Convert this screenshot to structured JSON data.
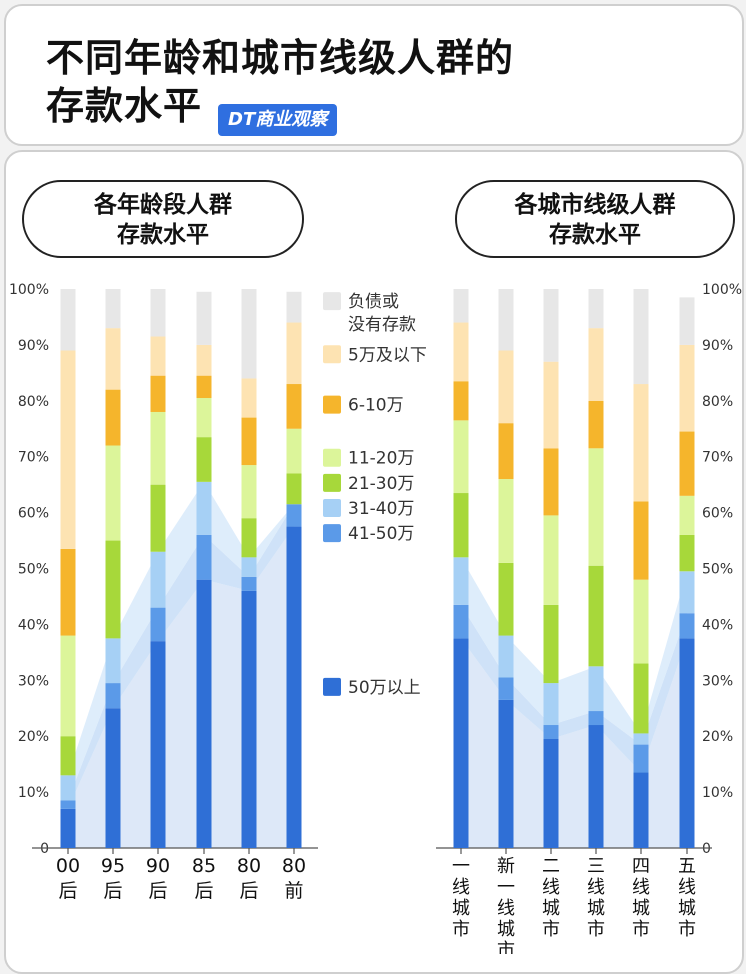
{
  "title": {
    "line1": "不同年龄和城市线级人群的",
    "line2": "存款水平"
  },
  "brand": "DT商业观察",
  "panels": {
    "age": {
      "line1": "各年龄段人群",
      "line2": "存款水平"
    },
    "city": {
      "line1": "各城市线级人群",
      "line2": "存款水平"
    }
  },
  "colors": {
    "负债或没有存款": "#e7e7e7",
    "5万及以下": "#fde3b2",
    "6-10万": "#f5b52c",
    "11-20万": "#dcf59a",
    "21-30万": "#a7d83a",
    "31-40万": "#a6d0f5",
    "41-50万": "#5b9ae8",
    "50万以上": "#2f6fd6",
    "area": "#dde8f8"
  },
  "chart_data": [
    {
      "type": "stacked-bar",
      "categories": [
        "00后",
        "95后",
        "90后",
        "85后",
        "80后",
        "80前"
      ],
      "ylim": [
        0,
        100
      ],
      "yticks": [
        "0",
        "10%",
        "20%",
        "30%",
        "40%",
        "50%",
        "60%",
        "70%",
        "80%",
        "90%",
        "100%"
      ],
      "series": [
        {
          "name": "50万以上",
          "values": [
            7,
            25,
            37,
            48,
            46,
            57.5
          ]
        },
        {
          "name": "41-50万",
          "values": [
            1.5,
            4.5,
            6,
            8,
            2.5,
            4
          ]
        },
        {
          "name": "31-40万",
          "values": [
            4.5,
            8,
            10,
            9.5,
            3.5,
            0
          ]
        },
        {
          "name": "21-30万",
          "values": [
            7,
            17.5,
            12,
            8,
            7,
            5.5
          ]
        },
        {
          "name": "11-20万",
          "values": [
            18,
            17,
            13,
            7,
            9.5,
            8
          ]
        },
        {
          "name": "6-10万",
          "values": [
            15.5,
            10,
            6.5,
            4,
            8.5,
            8
          ]
        },
        {
          "name": "5万及以下",
          "values": [
            35.5,
            11,
            7,
            5.5,
            7,
            11
          ]
        },
        {
          "name": "负债或没有存款",
          "values": [
            11,
            7,
            8.5,
            9.5,
            16,
            5.5
          ]
        }
      ]
    },
    {
      "type": "stacked-bar",
      "categories": [
        "一线城市",
        "新一线城市",
        "二线城市",
        "三线城市",
        "四线城市",
        "五线城市"
      ],
      "ylim": [
        0,
        100
      ],
      "yticks": [
        "0",
        "10%",
        "20%",
        "30%",
        "40%",
        "50%",
        "60%",
        "70%",
        "80%",
        "90%",
        "100%"
      ],
      "series": [
        {
          "name": "50万以上",
          "values": [
            37.5,
            26.5,
            19.5,
            22,
            13.5,
            37.5
          ]
        },
        {
          "name": "41-50万",
          "values": [
            6,
            4,
            2.5,
            2.5,
            5,
            4.5
          ]
        },
        {
          "name": "31-40万",
          "values": [
            8.5,
            7.5,
            7.5,
            8,
            2,
            7.5
          ]
        },
        {
          "name": "21-30万",
          "values": [
            11.5,
            13,
            14,
            18,
            12.5,
            6.5
          ]
        },
        {
          "name": "11-20万",
          "values": [
            13,
            15,
            16,
            21,
            15,
            7
          ]
        },
        {
          "name": "6-10万",
          "values": [
            7,
            10,
            12,
            8.5,
            14,
            11.5
          ]
        },
        {
          "name": "5万及以下",
          "values": [
            10.5,
            13,
            15.5,
            13,
            21,
            15.5
          ]
        },
        {
          "name": "负债或没有存款",
          "values": [
            6,
            11,
            13,
            7,
            17,
            8.5
          ]
        }
      ]
    }
  ],
  "legend": [
    {
      "name": "负债或没有存款",
      "lines": [
        "负债或",
        "没有存款"
      ],
      "at": 98
    },
    {
      "name": "5万及以下",
      "lines": [
        "5万及以下"
      ],
      "at": 88.5
    },
    {
      "name": "6-10万",
      "lines": [
        "6-10万"
      ],
      "at": 79.5
    },
    {
      "name": "11-20万",
      "lines": [
        "11-20万"
      ],
      "at": 70
    },
    {
      "name": "21-30万",
      "lines": [
        "21-30万"
      ],
      "at": 65.5
    },
    {
      "name": "31-40万",
      "lines": [
        "31-40万"
      ],
      "at": 61
    },
    {
      "name": "41-50万",
      "lines": [
        "41-50万"
      ],
      "at": 56.5
    },
    {
      "name": "50万以上",
      "lines": [
        "50万以上"
      ],
      "at": 29
    }
  ]
}
